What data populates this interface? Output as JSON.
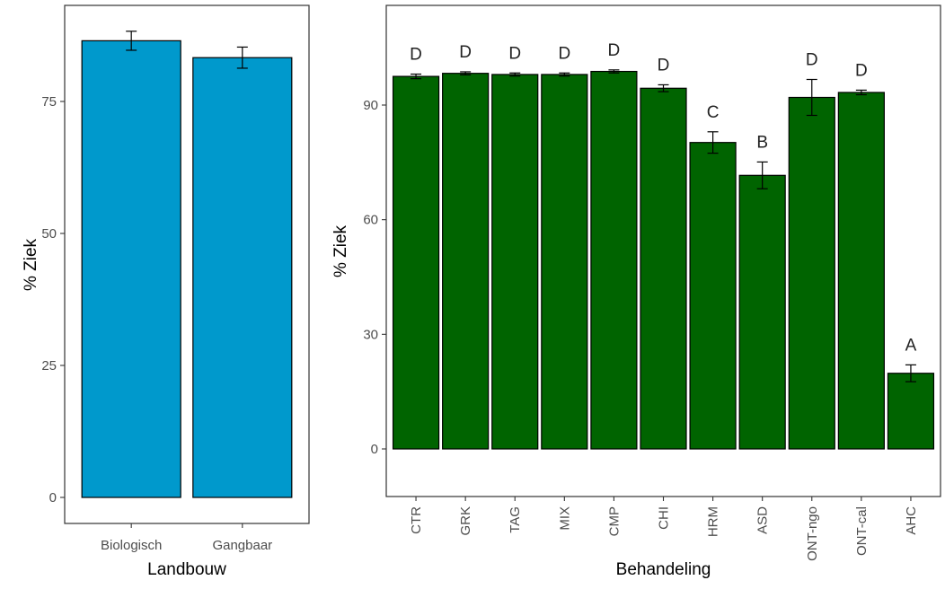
{
  "chart_data": [
    {
      "type": "bar",
      "xlabel": "Landbouw",
      "ylabel": "% Ziek",
      "categories": [
        "Biologisch",
        "Gangbaar"
      ],
      "values": [
        86.5,
        83.3
      ],
      "errors": [
        1.8,
        2.0
      ],
      "ylim": [
        0,
        90
      ],
      "yticks": [
        0,
        25,
        50,
        75
      ],
      "bar_color": "#0099cc",
      "grid": false
    },
    {
      "type": "bar",
      "xlabel": "Behandeling",
      "ylabel": "% Ziek",
      "categories": [
        "CTR",
        "GRK",
        "TAG",
        "MIX",
        "CMP",
        "CHI",
        "HRM",
        "ASD",
        "ONT-ngo",
        "ONT-cal",
        "AHC"
      ],
      "values": [
        97.5,
        98.3,
        98.0,
        98.0,
        98.8,
        94.4,
        80.2,
        71.6,
        92.0,
        93.3,
        19.8
      ],
      "errors": [
        0.6,
        0.4,
        0.4,
        0.4,
        0.4,
        0.9,
        2.8,
        3.5,
        4.7,
        0.6,
        2.2
      ],
      "letters": [
        "D",
        "D",
        "D",
        "D",
        "D",
        "D",
        "C",
        "B",
        "D",
        "D",
        "A"
      ],
      "ylim": [
        -5,
        113
      ],
      "yticks": [
        0,
        30,
        60,
        90
      ],
      "bar_color": "#006400",
      "grid": false
    }
  ]
}
